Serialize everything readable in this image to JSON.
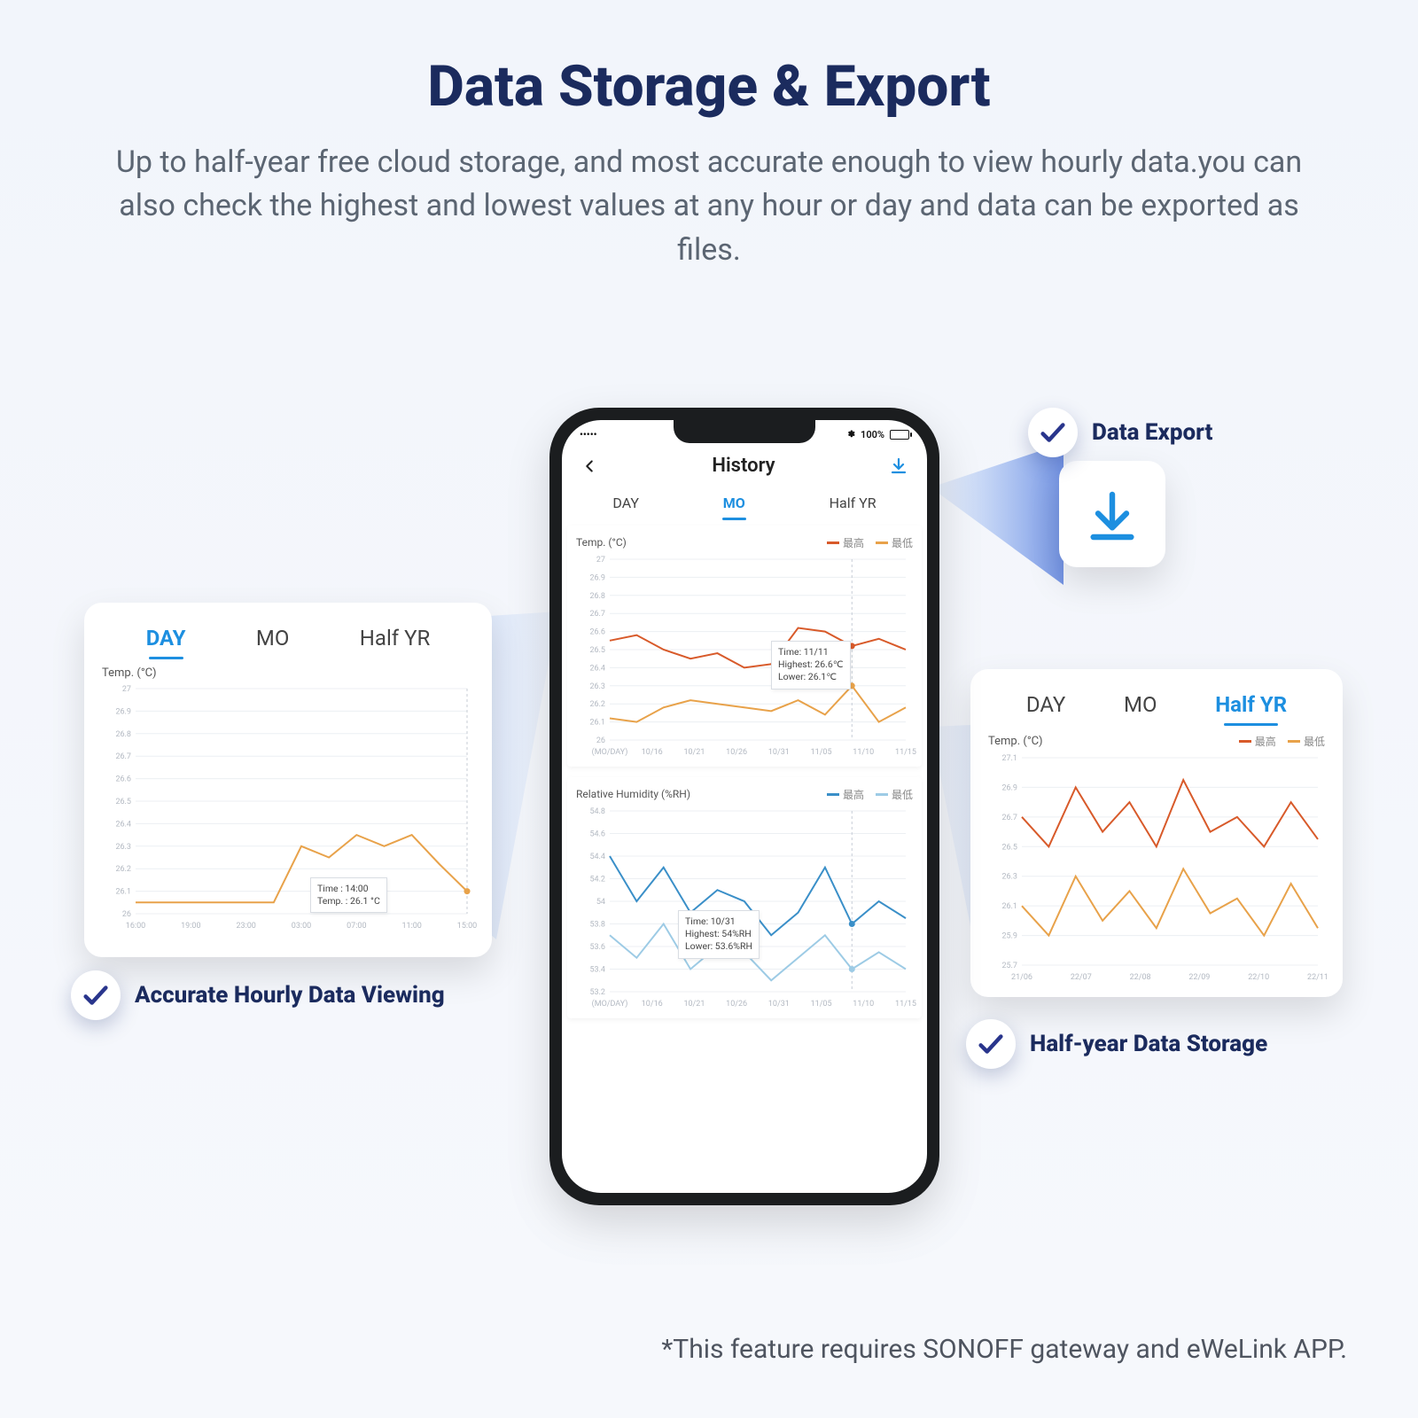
{
  "title": "Data Storage & Export",
  "subtitle": "Up to half-year free cloud storage, and most accurate enough to view hourly data.you can also check the highest and lowest values at any hour or day and data can be exported as files.",
  "footnote": "*This feature requires SONOFF gateway and eWeLink APP.",
  "colors": {
    "brand": "#1d8fe0",
    "navy": "#1b2b5e",
    "accent_check": "#29358c",
    "beam": "#2f5fd8",
    "high_orange": "#d85a2a",
    "low_orange": "#e8a24a",
    "high_blue": "#3a8fc8",
    "low_blue": "#9dcbe5",
    "grid": "#eceff3",
    "text_muted": "#9aa1ab"
  },
  "callouts": {
    "export": "Data Export",
    "hourly": "Accurate Hourly Data Viewing",
    "halfyear": "Half-year Data Storage"
  },
  "phone": {
    "status_left": "•••••",
    "status_bt": "100%",
    "title": "History",
    "tabs": [
      "DAY",
      "MO",
      "Half YR"
    ],
    "active_tab": "MO",
    "temp_panel": {
      "title": "Temp.  (°C)",
      "legend_high": "最高",
      "legend_low": "最低",
      "x_labels": [
        "(MO/DAY)",
        "10/16",
        "10/21",
        "10/26",
        "10/31",
        "11/05",
        "11/10",
        "11/15"
      ],
      "y_labels": [
        "26",
        "26.1",
        "26.2",
        "26.3",
        "26.4",
        "26.5",
        "26.6",
        "26.7",
        "26.8",
        "26.9",
        "27"
      ],
      "ylim": [
        26.0,
        27.0
      ],
      "high_values": [
        26.55,
        26.58,
        26.5,
        26.45,
        26.48,
        26.4,
        26.42,
        26.62,
        26.6,
        26.52,
        26.56,
        26.5
      ],
      "low_values": [
        26.12,
        26.1,
        26.18,
        26.22,
        26.2,
        26.18,
        26.16,
        26.22,
        26.14,
        26.3,
        26.1,
        26.18
      ],
      "tooltip": {
        "line1": "Time: 11/11",
        "line2": "Highest: 26.6℃",
        "line3": "Lower: 26.1℃"
      }
    },
    "humid_panel": {
      "title": "Relative Humidity   (%RH)",
      "legend_high": "最高",
      "legend_low": "最低",
      "x_labels": [
        "(MO/DAY)",
        "10/16",
        "10/21",
        "10/26",
        "10/31",
        "11/05",
        "11/10",
        "11/15"
      ],
      "y_labels": [
        "53.2",
        "53.4",
        "53.6",
        "53.8",
        "54",
        "54.2",
        "54.4",
        "54.6",
        "54.8"
      ],
      "ylim": [
        53.2,
        54.8
      ],
      "high_values": [
        54.4,
        54.0,
        54.3,
        53.9,
        54.1,
        54.0,
        53.7,
        53.9,
        54.3,
        53.8,
        54.0,
        53.85
      ],
      "low_values": [
        53.7,
        53.5,
        53.8,
        53.4,
        53.6,
        53.55,
        53.3,
        53.5,
        53.7,
        53.4,
        53.55,
        53.4
      ],
      "tooltip": {
        "line1": "Time: 10/31",
        "line2": "Highest: 54%RH",
        "line3": "Lower: 53.6%RH"
      }
    }
  },
  "left_card": {
    "tabs": [
      "DAY",
      "MO",
      "Half YR"
    ],
    "active_tab": "DAY",
    "title": "Temp.  (°C)",
    "x_labels": [
      "16:00",
      "19:00",
      "23:00",
      "03:00",
      "07:00",
      "11:00",
      "15:00"
    ],
    "y_labels": [
      "26",
      "26.1",
      "26.2",
      "26.3",
      "26.4",
      "26.5",
      "26.6",
      "26.7",
      "26.8",
      "26.9",
      "27"
    ],
    "ylim": [
      26.0,
      27.0
    ],
    "values": [
      26.05,
      26.05,
      26.05,
      26.05,
      26.05,
      26.05,
      26.3,
      26.25,
      26.35,
      26.3,
      26.35,
      26.22,
      26.1
    ],
    "line_color": "#e8a24a",
    "tooltip": {
      "line1": "Time : 14:00",
      "line2": "Temp. : 26.1 °C"
    }
  },
  "right_card": {
    "tabs": [
      "DAY",
      "MO",
      "Half YR"
    ],
    "active_tab": "Half YR",
    "title": "Temp.  (°C)",
    "legend_high": "最高",
    "legend_low": "最低",
    "x_labels": [
      "21/06",
      "22/07",
      "22/08",
      "22/09",
      "22/10",
      "22/11"
    ],
    "y_labels": [
      "25.7",
      "25.9",
      "26.1",
      "26.3",
      "26.5",
      "26.7",
      "26.9",
      "27.1"
    ],
    "ylim": [
      25.7,
      27.1
    ],
    "high_values": [
      26.7,
      26.5,
      26.9,
      26.6,
      26.8,
      26.5,
      26.95,
      26.6,
      26.7,
      26.5,
      26.8,
      26.55
    ],
    "low_values": [
      26.1,
      25.9,
      26.3,
      26.0,
      26.2,
      25.95,
      26.35,
      26.05,
      26.15,
      25.9,
      26.25,
      25.95
    ]
  }
}
